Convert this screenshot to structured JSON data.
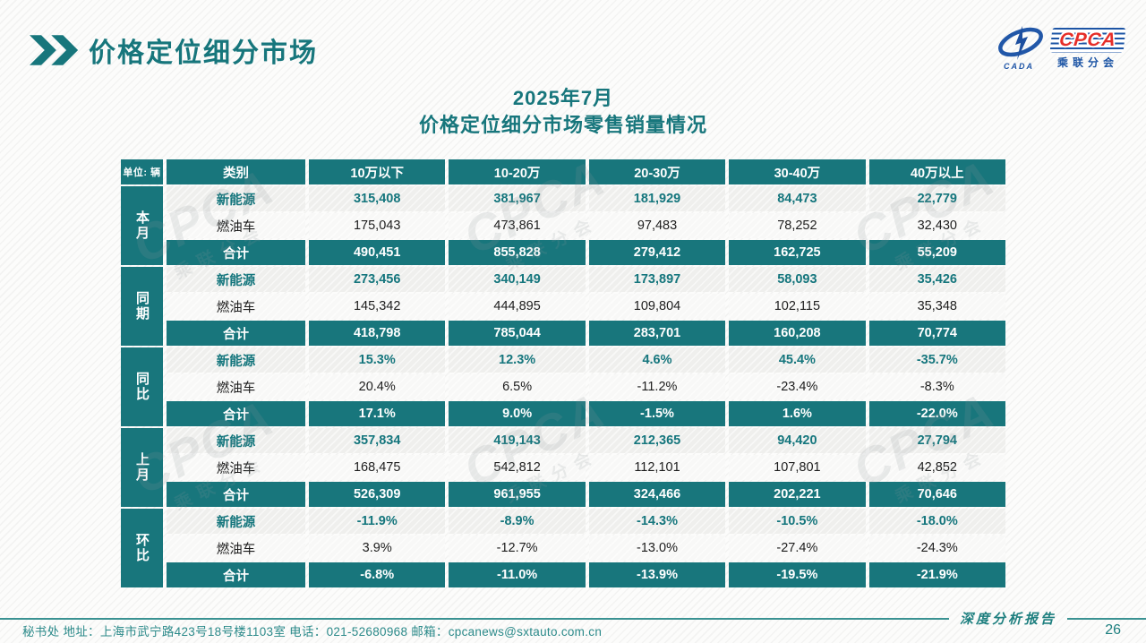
{
  "header": {
    "title": "价格定位细分市场"
  },
  "logo": {
    "wordmark": "CPCA",
    "subtitle": "乘联分会",
    "emblem_text": "CADA"
  },
  "subtitle": {
    "line1": "2025年7月",
    "line2": "价格定位细分市场零售销量情况"
  },
  "watermark": {
    "text": "CPCA",
    "subtext": "乘联分会"
  },
  "table": {
    "unit_label": "单位: 辆",
    "category_header": "类别",
    "columns": [
      "10万以下",
      "10-20万",
      "20-30万",
      "30-40万",
      "40万以上"
    ],
    "groups": [
      {
        "label": "本月",
        "rows": [
          {
            "type": "nev",
            "label": "新能源",
            "values": [
              "315,408",
              "381,967",
              "181,929",
              "84,473",
              "22,779"
            ]
          },
          {
            "type": "fuel",
            "label": "燃油车",
            "values": [
              "175,043",
              "473,861",
              "97,483",
              "78,252",
              "32,430"
            ]
          },
          {
            "type": "total",
            "label": "合计",
            "values": [
              "490,451",
              "855,828",
              "279,412",
              "162,725",
              "55,209"
            ]
          }
        ]
      },
      {
        "label": "同期",
        "rows": [
          {
            "type": "nev",
            "label": "新能源",
            "values": [
              "273,456",
              "340,149",
              "173,897",
              "58,093",
              "35,426"
            ]
          },
          {
            "type": "fuel",
            "label": "燃油车",
            "values": [
              "145,342",
              "444,895",
              "109,804",
              "102,115",
              "35,348"
            ]
          },
          {
            "type": "total",
            "label": "合计",
            "values": [
              "418,798",
              "785,044",
              "283,701",
              "160,208",
              "70,774"
            ]
          }
        ]
      },
      {
        "label": "同比",
        "rows": [
          {
            "type": "nev",
            "label": "新能源",
            "values": [
              "15.3%",
              "12.3%",
              "4.6%",
              "45.4%",
              "-35.7%"
            ]
          },
          {
            "type": "fuel",
            "label": "燃油车",
            "values": [
              "20.4%",
              "6.5%",
              "-11.2%",
              "-23.4%",
              "-8.3%"
            ]
          },
          {
            "type": "total",
            "label": "合计",
            "values": [
              "17.1%",
              "9.0%",
              "-1.5%",
              "1.6%",
              "-22.0%"
            ]
          }
        ]
      },
      {
        "label": "上月",
        "rows": [
          {
            "type": "nev",
            "label": "新能源",
            "values": [
              "357,834",
              "419,143",
              "212,365",
              "94,420",
              "27,794"
            ]
          },
          {
            "type": "fuel",
            "label": "燃油车",
            "values": [
              "168,475",
              "542,812",
              "112,101",
              "107,801",
              "42,852"
            ]
          },
          {
            "type": "total",
            "label": "合计",
            "values": [
              "526,309",
              "961,955",
              "324,466",
              "202,221",
              "70,646"
            ]
          }
        ]
      },
      {
        "label": "环比",
        "rows": [
          {
            "type": "nev",
            "label": "新能源",
            "values": [
              "-11.9%",
              "-8.9%",
              "-14.3%",
              "-10.5%",
              "-18.0%"
            ]
          },
          {
            "type": "fuel",
            "label": "燃油车",
            "values": [
              "3.9%",
              "-12.7%",
              "-13.0%",
              "-27.4%",
              "-24.3%"
            ]
          },
          {
            "type": "total",
            "label": "合计",
            "values": [
              "-6.8%",
              "-11.0%",
              "-13.9%",
              "-19.5%",
              "-21.9%"
            ]
          }
        ]
      }
    ]
  },
  "footer": {
    "contact": "秘书处   地址：上海市武宁路423号18号楼1103室  电话：021-52680968   邮箱：cpcanews@sxtauto.com.cn",
    "report_label": "深度分析报告",
    "page_number": "26"
  }
}
